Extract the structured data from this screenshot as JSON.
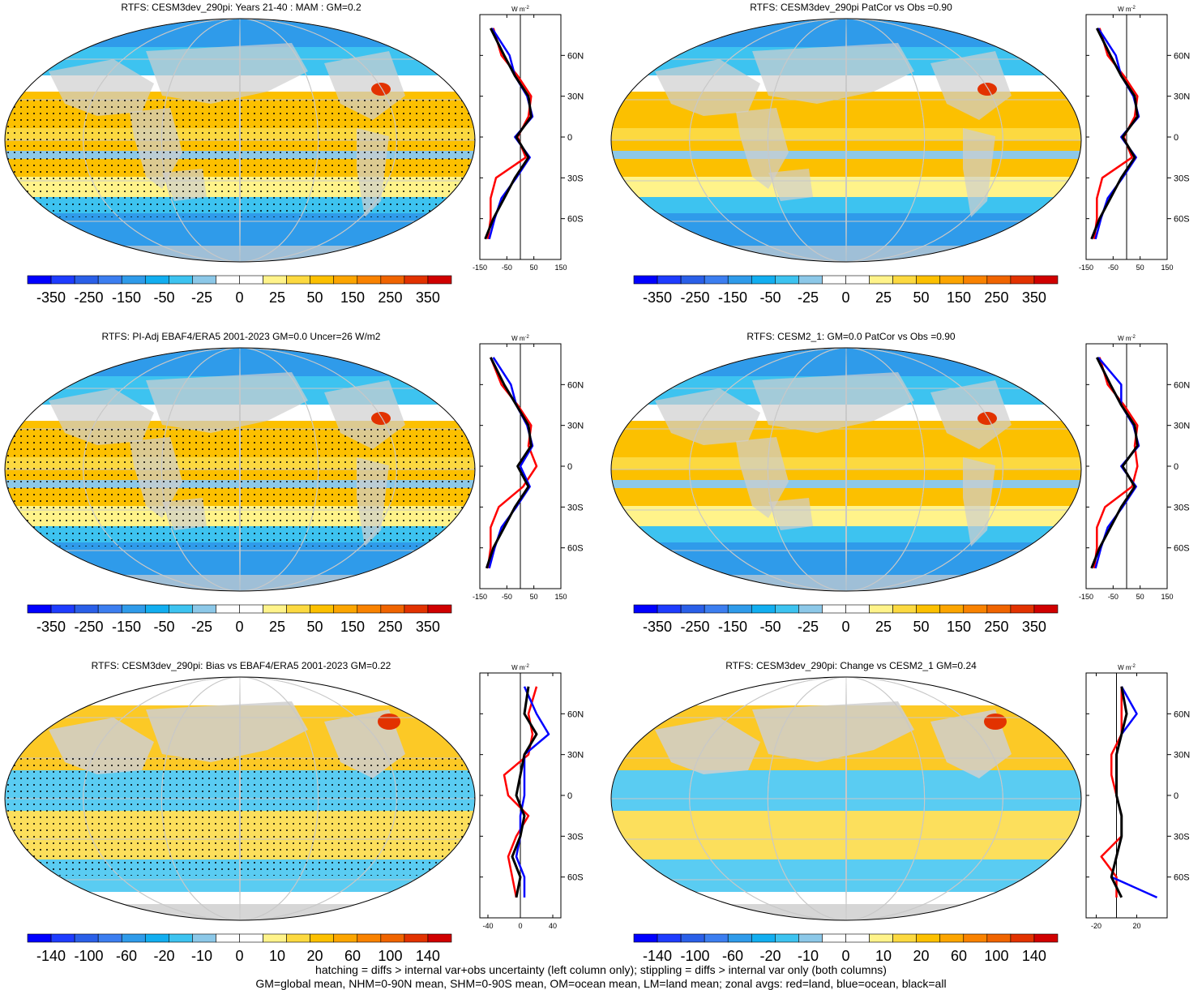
{
  "panels": [
    {
      "title": "RTFS: CESM3dev_290pi: Years 21-40 : MAM : GM=0.2",
      "profile_ticks": [
        "-150",
        "-50",
        "50",
        "150"
      ],
      "colorbar_labels": [
        "-350",
        "-250",
        "-150",
        "-50",
        "-25",
        "0",
        "25",
        "50",
        "150",
        "250",
        "350"
      ],
      "stipple": true
    },
    {
      "title": "RTFS: CESM3dev_290pi PatCor vs Obs =0.90",
      "profile_ticks": [
        "-150",
        "-50",
        "50",
        "150"
      ],
      "colorbar_labels": [
        "-350",
        "-250",
        "-150",
        "-50",
        "-25",
        "0",
        "25",
        "50",
        "150",
        "250",
        "350"
      ],
      "stipple": false
    },
    {
      "title": "RTFS: PI-Adj EBAF4/ERA5 2001-2023 GM=0.0 Uncer=26 W/m2",
      "profile_ticks": [
        "-150",
        "-50",
        "50",
        "150"
      ],
      "colorbar_labels": [
        "-350",
        "-250",
        "-150",
        "-50",
        "-25",
        "0",
        "25",
        "50",
        "150",
        "250",
        "350"
      ],
      "stipple": true
    },
    {
      "title": "RTFS: CESM2_1: GM=0.0 PatCor vs Obs =0.90",
      "profile_ticks": [
        "-150",
        "-50",
        "50",
        "150"
      ],
      "colorbar_labels": [
        "-350",
        "-250",
        "-150",
        "-50",
        "-25",
        "0",
        "25",
        "50",
        "150",
        "250",
        "350"
      ],
      "stipple": false
    },
    {
      "title": "RTFS: CESM3dev_290pi: Bias vs EBAF4/ERA5 2001-2023 GM=0.22",
      "profile_ticks": [
        "-40",
        "0",
        "40"
      ],
      "colorbar_labels": [
        "-140",
        "-100",
        "-60",
        "-20",
        "-10",
        "0",
        "10",
        "20",
        "60",
        "100",
        "140"
      ],
      "stipple": true
    },
    {
      "title": "RTFS: CESM3dev_290pi: Change vs CESM2_1 GM=0.24",
      "profile_ticks": [
        "-20",
        "20"
      ],
      "colorbar_labels": [
        "-140",
        "-100",
        "-60",
        "-20",
        "-10",
        "0",
        "10",
        "20",
        "60",
        "100",
        "140"
      ],
      "stipple": false
    }
  ],
  "units_label": "W m",
  "units_sup": "-2",
  "lat_labels": [
    "60N",
    "30N",
    "0",
    "30S",
    "60S"
  ],
  "colors": [
    "#0000ff",
    "#1e3cff",
    "#2a5fe8",
    "#3c7ef0",
    "#2f9bea",
    "#12aef0",
    "#3dc3f0",
    "#8cc8e8",
    "#ffffff",
    "#ffffff",
    "#fff38a",
    "#fcd940",
    "#fcc000",
    "#fca500",
    "#f98200",
    "#f06400",
    "#e23200",
    "#d00000"
  ],
  "profile_colors": {
    "land": "#ff0000",
    "ocean": "#0000ff",
    "all": "#000000"
  },
  "footer": {
    "line1": "hatching = diffs > internal var+obs uncertainty (left column only); stippling = diffs > internal var only (both columns)",
    "line2": "GM=global mean, NHM=0-90N mean, SHM=0-90S mean, OM=ocean mean, LM=land mean; zonal avgs: red=land, blue=ocean, black=all"
  },
  "chart_data": [
    {
      "type": "heatmap",
      "title": "RTFS: CESM3dev_290pi: Years 21-40 : MAM : GM=0.2",
      "colorbar": [
        -350,
        -250,
        -150,
        -50,
        -25,
        0,
        25,
        50,
        150,
        250,
        350
      ],
      "profile_xlim": [
        -150,
        150
      ],
      "profile_lat": [
        80,
        60,
        45,
        30,
        15,
        0,
        -15,
        -30,
        -45,
        -60,
        -75
      ],
      "profile_all": [
        -110,
        -60,
        -20,
        30,
        40,
        -15,
        30,
        -20,
        -60,
        -100,
        -130
      ],
      "profile_land": [
        -100,
        -70,
        -10,
        40,
        30,
        -10,
        20,
        -90,
        -110,
        -110,
        -120
      ],
      "profile_ocean": [
        -105,
        -40,
        -20,
        25,
        45,
        -20,
        35,
        -15,
        -70,
        -95,
        -115
      ]
    },
    {
      "type": "heatmap",
      "title": "RTFS: CESM3dev_290pi PatCor vs Obs =0.90",
      "colorbar": [
        -350,
        -250,
        -150,
        -50,
        -25,
        0,
        25,
        50,
        150,
        250,
        350
      ],
      "profile_xlim": [
        -150,
        150
      ],
      "profile_lat": [
        80,
        60,
        45,
        30,
        15,
        0,
        -15,
        -30,
        -45,
        -60,
        -75
      ],
      "profile_all": [
        -110,
        -60,
        -20,
        30,
        40,
        -15,
        30,
        -20,
        -60,
        -100,
        -130
      ],
      "profile_land": [
        -100,
        -70,
        -10,
        40,
        30,
        -10,
        20,
        -90,
        -110,
        -110,
        -120
      ],
      "profile_ocean": [
        -105,
        -40,
        -20,
        25,
        45,
        -20,
        35,
        -15,
        -70,
        -95,
        -115
      ]
    },
    {
      "type": "heatmap",
      "title": "RTFS: PI-Adj EBAF4/ERA5 2001-2023 GM=0.0 Uncer=26 W/m2",
      "colorbar": [
        -350,
        -250,
        -150,
        -50,
        -25,
        0,
        25,
        50,
        150,
        250,
        350
      ],
      "profile_xlim": [
        -150,
        150
      ],
      "profile_lat": [
        80,
        60,
        45,
        30,
        15,
        0,
        -15,
        -30,
        -45,
        -60,
        -75
      ],
      "profile_all": [
        -110,
        -60,
        -15,
        30,
        40,
        -10,
        30,
        -20,
        -60,
        -100,
        -125
      ],
      "profile_land": [
        -110,
        -70,
        -10,
        40,
        30,
        60,
        10,
        -80,
        -110,
        -110,
        -120
      ],
      "profile_ocean": [
        -100,
        -35,
        -15,
        25,
        45,
        0,
        35,
        -15,
        -70,
        -95,
        -115
      ]
    },
    {
      "type": "heatmap",
      "title": "RTFS: CESM2_1: GM=0.0 PatCor vs Obs =0.90",
      "colorbar": [
        -350,
        -250,
        -150,
        -50,
        -25,
        0,
        25,
        50,
        150,
        250,
        350
      ],
      "profile_xlim": [
        -150,
        150
      ],
      "profile_lat": [
        80,
        60,
        45,
        30,
        15,
        0,
        -15,
        -30,
        -45,
        -60,
        -75
      ],
      "profile_all": [
        -110,
        -60,
        -20,
        30,
        40,
        -15,
        30,
        -20,
        -60,
        -100,
        -130
      ],
      "profile_land": [
        -100,
        -70,
        -10,
        40,
        30,
        40,
        20,
        -80,
        -110,
        -110,
        -120
      ],
      "profile_ocean": [
        -105,
        -20,
        -20,
        25,
        45,
        -20,
        35,
        -15,
        -70,
        -95,
        -115
      ]
    },
    {
      "type": "heatmap",
      "title": "RTFS: CESM3dev_290pi: Bias vs EBAF4/ERA5 2001-2023 GM=0.22",
      "colorbar": [
        -140,
        -100,
        -60,
        -20,
        -10,
        0,
        10,
        20,
        60,
        100,
        140
      ],
      "profile_xlim": [
        -50,
        50
      ],
      "profile_lat": [
        80,
        60,
        45,
        30,
        15,
        0,
        -15,
        -30,
        -45,
        -60,
        -75
      ],
      "profile_all": [
        10,
        5,
        20,
        5,
        0,
        -5,
        5,
        0,
        -10,
        0,
        -5
      ],
      "profile_land": [
        20,
        10,
        15,
        10,
        -20,
        -15,
        10,
        -5,
        -15,
        -10,
        -5
      ],
      "profile_ocean": [
        5,
        20,
        35,
        5,
        5,
        5,
        0,
        0,
        -5,
        5,
        5
      ]
    },
    {
      "type": "heatmap",
      "title": "RTFS: CESM3dev_290pi: Change vs CESM2_1 GM=0.24",
      "colorbar": [
        -140,
        -100,
        -60,
        -20,
        -10,
        0,
        10,
        20,
        60,
        100,
        140
      ],
      "profile_xlim": [
        -30,
        50
      ],
      "profile_lat": [
        80,
        60,
        45,
        30,
        15,
        0,
        -15,
        -30,
        -45,
        -60,
        -75
      ],
      "profile_all": [
        5,
        10,
        5,
        0,
        0,
        0,
        5,
        5,
        0,
        -5,
        5
      ],
      "profile_land": [
        5,
        5,
        5,
        -5,
        -5,
        0,
        5,
        5,
        -15,
        0,
        0
      ],
      "profile_ocean": [
        5,
        20,
        5,
        0,
        0,
        0,
        5,
        5,
        0,
        -5,
        40
      ]
    }
  ]
}
